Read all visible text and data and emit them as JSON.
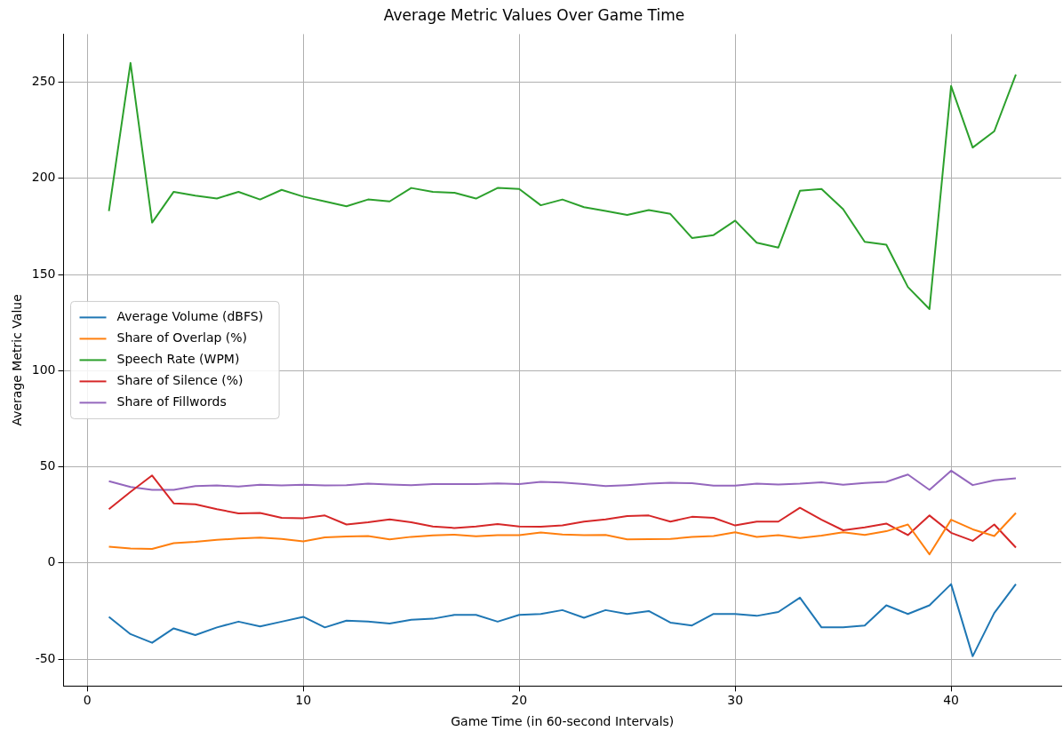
{
  "chart_data": {
    "type": "line",
    "title": "Average Metric Values Over Game Time",
    "xlabel": "Game Time (in 60-second Intervals)",
    "ylabel": "Average Metric Value",
    "x": [
      1,
      2,
      3,
      4,
      5,
      6,
      7,
      8,
      9,
      10,
      11,
      12,
      13,
      14,
      15,
      16,
      17,
      18,
      19,
      20,
      21,
      22,
      23,
      24,
      25,
      26,
      27,
      28,
      29,
      30,
      31,
      32,
      33,
      34,
      35,
      36,
      37,
      38,
      39,
      40,
      41,
      42,
      43
    ],
    "series": [
      {
        "name": "Average Volume (dBFS)",
        "color": "#1f77b4",
        "values": [
          -28,
          -37,
          -41.5,
          -34,
          -37.5,
          -33.5,
          -30.5,
          -33,
          -30.5,
          -28,
          -33.5,
          -30,
          -30.5,
          -31.5,
          -29.5,
          -29,
          -27,
          -27,
          -30.5,
          -27,
          -26.5,
          -24.5,
          -28.5,
          -24.5,
          -26.5,
          -25,
          -31,
          -32.5,
          -26.5,
          -26.5,
          -27.5,
          -25.5,
          -18,
          -33.5,
          -33.5,
          -32.5,
          -22,
          -26.5,
          -22,
          -11,
          -48.5,
          -26,
          -11
        ]
      },
      {
        "name": "Share of Overlap (%)",
        "color": "#ff7f0e",
        "values": [
          8.5,
          7.5,
          7.3,
          10.3,
          11,
          12,
          12.7,
          13.2,
          12.5,
          11.2,
          13.3,
          13.8,
          14,
          12.3,
          13.6,
          14.4,
          14.7,
          13.9,
          14.5,
          14.5,
          15.8,
          14.8,
          14.5,
          14.6,
          12.3,
          12.4,
          12.5,
          13.5,
          14,
          16,
          13.5,
          14.5,
          13,
          14.2,
          16,
          14.6,
          16.5,
          20,
          4.5,
          22.5,
          17.5,
          14,
          26
        ]
      },
      {
        "name": "Speech Rate (WPM)",
        "color": "#2ca02c",
        "values": [
          183,
          260,
          177,
          193,
          191,
          189.5,
          193,
          189,
          194,
          190.5,
          188,
          185.5,
          189,
          188,
          195,
          193,
          192.5,
          189.5,
          195,
          194.5,
          186,
          189,
          185,
          183,
          181,
          183.5,
          181.5,
          169,
          170.5,
          178,
          166.5,
          164,
          193.5,
          194.5,
          184,
          167,
          165.5,
          143.5,
          132,
          248,
          216,
          224.5,
          254
        ]
      },
      {
        "name": "Share of Silence (%)",
        "color": "#d62728",
        "values": [
          28,
          37,
          45.5,
          31,
          30.5,
          28,
          25.8,
          26,
          23.5,
          23.3,
          24.7,
          20,
          21.2,
          22.7,
          21.2,
          19,
          18.2,
          19,
          20.2,
          19,
          18.8,
          19.5,
          21.5,
          22.7,
          24.4,
          24.7,
          21.5,
          24,
          23.5,
          19.5,
          21.5,
          21.5,
          28.7,
          22.5,
          17,
          18.5,
          20.5,
          14.5,
          24.7,
          15.7,
          11.5,
          20,
          8
        ]
      },
      {
        "name": "Share of Fillwords",
        "color": "#9467bd",
        "values": [
          42.5,
          39.5,
          38,
          38,
          40,
          40.3,
          39.7,
          40.7,
          40.3,
          40.7,
          40.3,
          40.5,
          41.3,
          40.8,
          40.4,
          41,
          41,
          41,
          41.4,
          41,
          42.2,
          41.8,
          41,
          40,
          40.5,
          41.2,
          41.7,
          41.5,
          40.2,
          40.2,
          41.3,
          40.8,
          41.2,
          42,
          40.7,
          41.6,
          42.2,
          46,
          38,
          48,
          40.5,
          43,
          44
        ]
      }
    ],
    "xlim": [
      -1.1,
      45.1
    ],
    "xticks": [
      0,
      10,
      20,
      30,
      40
    ],
    "ylim": [
      -64,
      275
    ],
    "yticks": [
      -50,
      0,
      50,
      100,
      150,
      200,
      250
    ],
    "grid": true,
    "legend": "center left",
    "marker": "none",
    "line_style": "solid"
  }
}
